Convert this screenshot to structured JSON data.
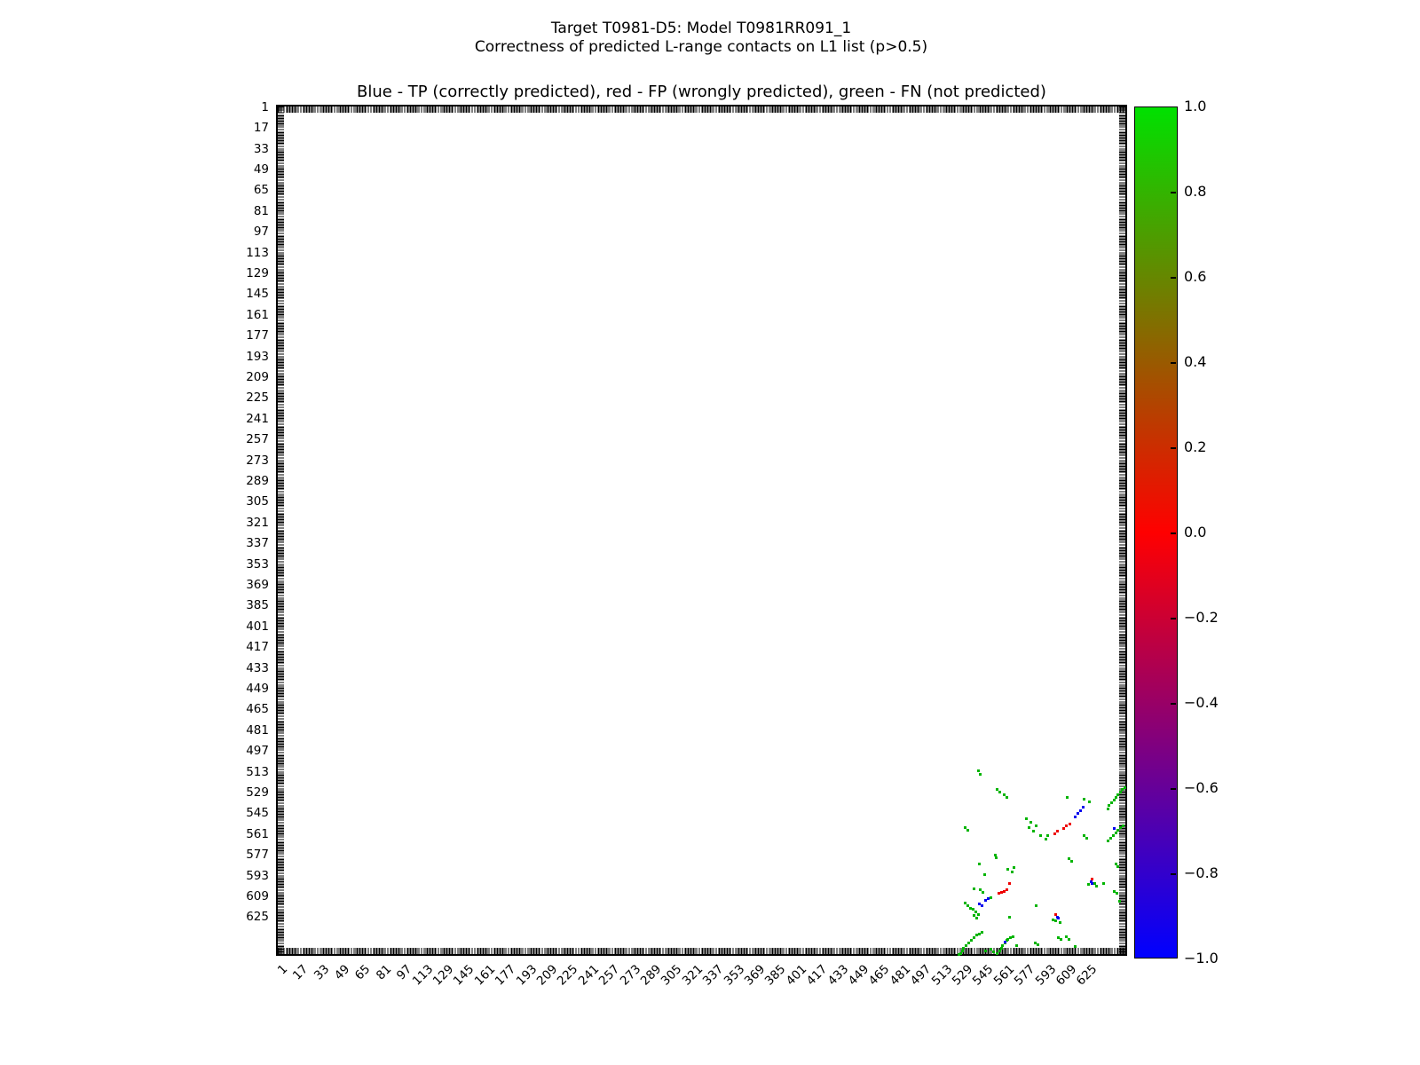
{
  "figure": {
    "suptitle_line1": "Target T0981-D5: Model T0981RR091_1",
    "suptitle_line2": "Correctness of predicted L-range contacts on L1 list (p>0.5)",
    "background": "#ffffff"
  },
  "chart_data": {
    "type": "scatter",
    "title": "Blue - TP (correctly predicted), red - FP (wrongly predicted), green - FN (not predicted)",
    "xlabel": "",
    "ylabel": "",
    "grid": false,
    "axis_min": 1,
    "axis_max": 653,
    "tick_step": 16,
    "x_tick_labels": [
      "1",
      "17",
      "33",
      "49",
      "65",
      "81",
      "97",
      "113",
      "129",
      "145",
      "161",
      "177",
      "193",
      "209",
      "225",
      "241",
      "257",
      "273",
      "289",
      "305",
      "321",
      "337",
      "353",
      "369",
      "385",
      "401",
      "417",
      "433",
      "449",
      "465",
      "481",
      "497",
      "513",
      "529",
      "545",
      "561",
      "577",
      "593",
      "609",
      "625"
    ],
    "y_tick_labels": [
      "1",
      "17",
      "33",
      "49",
      "65",
      "81",
      "97",
      "113",
      "129",
      "145",
      "161",
      "177",
      "193",
      "209",
      "225",
      "241",
      "257",
      "273",
      "289",
      "305",
      "321",
      "337",
      "353",
      "369",
      "385",
      "401",
      "417",
      "433",
      "449",
      "465",
      "481",
      "497",
      "513",
      "529",
      "545",
      "561",
      "577",
      "593",
      "609",
      "625"
    ],
    "legend_note": {
      "TP": "blue - correctly predicted",
      "FP": "red - wrongly predicted",
      "FN": "green - not predicted"
    },
    "colors": {
      "tp_blue": "#0000ee",
      "fp_red": "#ee0000",
      "fn_green": "#00b400"
    },
    "colorbar": {
      "min": -1.0,
      "max": 1.0,
      "tick_labels": [
        "1.0",
        "0.8",
        "0.6",
        "0.4",
        "0.2",
        "0.0",
        "−0.2",
        "−0.4",
        "−0.6",
        "−0.8",
        "−1.0"
      ],
      "gradient_stops": [
        {
          "value": 1.0,
          "color": "#00e100"
        },
        {
          "value": 0.0,
          "color": "#ff0000"
        },
        {
          "value": -1.0,
          "color": "#0000ff"
        }
      ]
    },
    "points": {
      "fn_green": [
        [
          609,
          533
        ],
        [
          622,
          534
        ],
        [
          626,
          536
        ],
        [
          594,
          562
        ],
        [
          640,
          542
        ],
        [
          641,
          539
        ],
        [
          643,
          537
        ],
        [
          645,
          535
        ],
        [
          646,
          533
        ],
        [
          648,
          531
        ],
        [
          650,
          529
        ],
        [
          651,
          527
        ],
        [
          653,
          525
        ],
        [
          640,
          566
        ],
        [
          642,
          564
        ],
        [
          644,
          562
        ],
        [
          646,
          560
        ],
        [
          648,
          558
        ],
        [
          650,
          556
        ],
        [
          652,
          555
        ],
        [
          622,
          562
        ],
        [
          624,
          564
        ],
        [
          577,
          549
        ],
        [
          579,
          556
        ],
        [
          581,
          552
        ],
        [
          583,
          559
        ],
        [
          585,
          555
        ],
        [
          588,
          562
        ],
        [
          592,
          565
        ],
        [
          555,
          527
        ],
        [
          557,
          529
        ],
        [
          560,
          531
        ],
        [
          562,
          533
        ],
        [
          540,
          512
        ],
        [
          542,
          515
        ],
        [
          530,
          556
        ],
        [
          532,
          558
        ],
        [
          553,
          577
        ],
        [
          554,
          579
        ],
        [
          541,
          584
        ],
        [
          545,
          592
        ],
        [
          610,
          580
        ],
        [
          612,
          582
        ],
        [
          646,
          584
        ],
        [
          648,
          586
        ],
        [
          637,
          599
        ],
        [
          645,
          605
        ],
        [
          647,
          607
        ],
        [
          649,
          613
        ],
        [
          630,
          599
        ],
        [
          625,
          600
        ],
        [
          631,
          601
        ],
        [
          563,
          588
        ],
        [
          566,
          590
        ],
        [
          568,
          587
        ],
        [
          550,
          610
        ],
        [
          542,
          604
        ],
        [
          544,
          606
        ],
        [
          537,
          603
        ],
        [
          536,
          619
        ],
        [
          538,
          621
        ],
        [
          540,
          623
        ],
        [
          534,
          618
        ],
        [
          530,
          614
        ],
        [
          532,
          616
        ],
        [
          537,
          624
        ],
        [
          539,
          626
        ],
        [
          564,
          625
        ],
        [
          598,
          627
        ],
        [
          600,
          628
        ],
        [
          603,
          629
        ],
        [
          585,
          616
        ],
        [
          570,
          647
        ],
        [
          584,
          645
        ],
        [
          586,
          646
        ],
        [
          602,
          641
        ],
        [
          604,
          642
        ],
        [
          615,
          648
        ],
        [
          608,
          640
        ],
        [
          610,
          642
        ],
        [
          543,
          637
        ],
        [
          541,
          638
        ],
        [
          539,
          639
        ],
        [
          537,
          641
        ],
        [
          535,
          643
        ],
        [
          533,
          645
        ],
        [
          531,
          647
        ],
        [
          529,
          649
        ],
        [
          528,
          651
        ],
        [
          527,
          653
        ],
        [
          525,
          654
        ],
        [
          567,
          640
        ],
        [
          565,
          641
        ],
        [
          563,
          642
        ],
        [
          562,
          643
        ],
        [
          561,
          645
        ],
        [
          559,
          647
        ],
        [
          558,
          649
        ],
        [
          557,
          651
        ],
        [
          555,
          653
        ],
        [
          550,
          650
        ],
        [
          552,
          652
        ],
        [
          546,
          651
        ]
      ],
      "tp_blue": [
        [
          621,
          540
        ],
        [
          619,
          543
        ],
        [
          617,
          545
        ],
        [
          615,
          548
        ],
        [
          645,
          557
        ],
        [
          627,
          598
        ],
        [
          628,
          599
        ],
        [
          541,
          615
        ],
        [
          543,
          616
        ],
        [
          546,
          612
        ],
        [
          548,
          611
        ],
        [
          601,
          625
        ],
        [
          602,
          626
        ],
        [
          561,
          644
        ]
      ],
      "fp_red": [
        [
          611,
          553
        ],
        [
          608,
          555
        ],
        [
          606,
          557
        ],
        [
          601,
          559
        ],
        [
          599,
          561
        ],
        [
          628,
          596
        ],
        [
          564,
          599
        ],
        [
          556,
          607
        ],
        [
          558,
          606
        ],
        [
          560,
          605
        ],
        [
          562,
          604
        ],
        [
          600,
          623
        ]
      ]
    }
  }
}
